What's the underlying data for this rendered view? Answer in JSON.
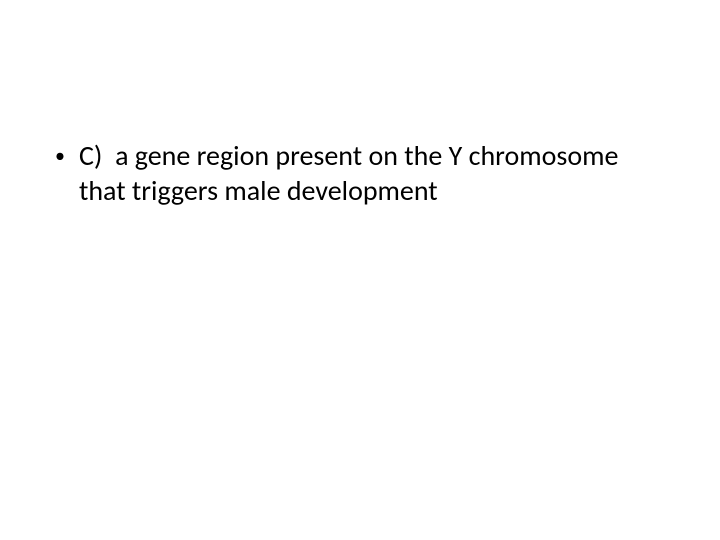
{
  "slide": {
    "background_color": "#ffffff",
    "text_color": "#000000",
    "font_family": "Calibri, Arial, sans-serif",
    "font_size_pt": 28,
    "bullet": {
      "marker": "•",
      "option_label": "C)",
      "option_text": "a gene region present on the Y chromosome that triggers male development"
    }
  }
}
